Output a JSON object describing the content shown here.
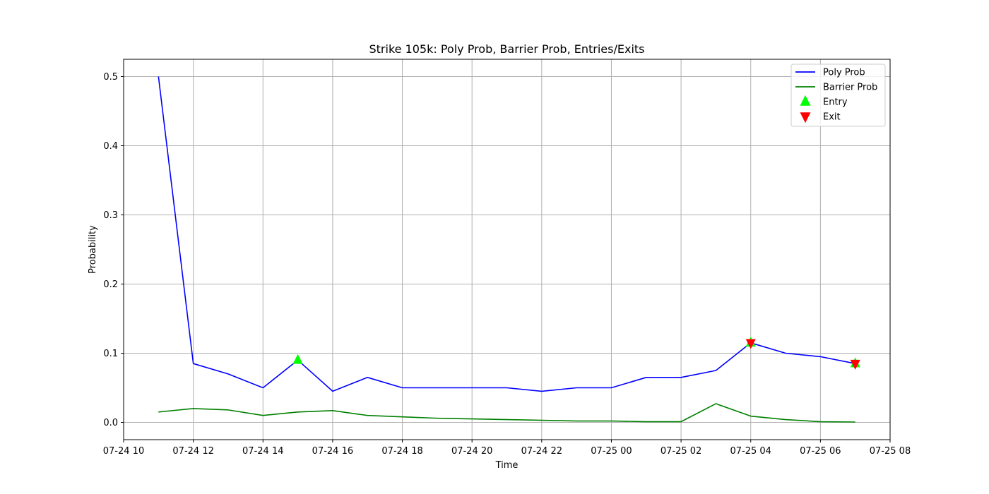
{
  "chart_data": {
    "type": "line",
    "title": "Strike 105k: Poly Prob, Barrier Prob, Entries/Exits",
    "xlabel": "Time",
    "ylabel": "Probability",
    "xlim": [
      "2025-07-24T10:00",
      "2025-07-25T08:00"
    ],
    "ylim": [
      -0.025,
      0.525
    ],
    "x_tick_labels": [
      "07-24 10",
      "07-24 12",
      "07-24 14",
      "07-24 16",
      "07-24 18",
      "07-24 20",
      "07-24 22",
      "07-25 00",
      "07-25 02",
      "07-25 04",
      "07-25 06",
      "07-25 08"
    ],
    "y_tick_labels": [
      "0.0",
      "0.1",
      "0.2",
      "0.3",
      "0.4",
      "0.5"
    ],
    "grid": true,
    "legend_position": "top-right",
    "x": [
      "2025-07-24T11:00",
      "2025-07-24T12:00",
      "2025-07-24T13:00",
      "2025-07-24T14:00",
      "2025-07-24T15:00",
      "2025-07-24T16:00",
      "2025-07-24T17:00",
      "2025-07-24T18:00",
      "2025-07-24T19:00",
      "2025-07-24T20:00",
      "2025-07-24T21:00",
      "2025-07-24T22:00",
      "2025-07-24T23:00",
      "2025-07-25T00:00",
      "2025-07-25T01:00",
      "2025-07-25T02:00",
      "2025-07-25T03:00",
      "2025-07-25T04:00",
      "2025-07-25T05:00",
      "2025-07-25T06:00",
      "2025-07-25T07:00"
    ],
    "series": [
      {
        "name": "Poly Prob",
        "color": "#0000ff",
        "values": [
          0.5,
          0.085,
          0.07,
          0.05,
          0.09,
          0.045,
          0.065,
          0.05,
          0.05,
          0.05,
          0.05,
          0.045,
          0.05,
          0.05,
          0.065,
          0.065,
          0.075,
          0.115,
          0.1,
          0.095,
          0.085
        ]
      },
      {
        "name": "Barrier Prob",
        "color": "#008000",
        "values": [
          0.015,
          0.02,
          0.018,
          0.01,
          0.015,
          0.017,
          0.01,
          0.008,
          0.006,
          0.005,
          0.004,
          0.003,
          0.002,
          0.002,
          0.001,
          0.001,
          0.027,
          0.009,
          0.004,
          0.001,
          0.0005
        ]
      }
    ],
    "markers": [
      {
        "name": "Entry",
        "color": "#00ff00",
        "shape": "triangle-up",
        "points": [
          {
            "x": "2025-07-24T15:00",
            "y": 0.09
          },
          {
            "x": "2025-07-25T04:00",
            "y": 0.115
          },
          {
            "x": "2025-07-25T07:00",
            "y": 0.085
          }
        ]
      },
      {
        "name": "Exit",
        "color": "#ff0000",
        "shape": "triangle-down",
        "points": [
          {
            "x": "2025-07-25T04:00",
            "y": 0.115
          },
          {
            "x": "2025-07-25T07:00",
            "y": 0.085
          }
        ]
      }
    ]
  }
}
